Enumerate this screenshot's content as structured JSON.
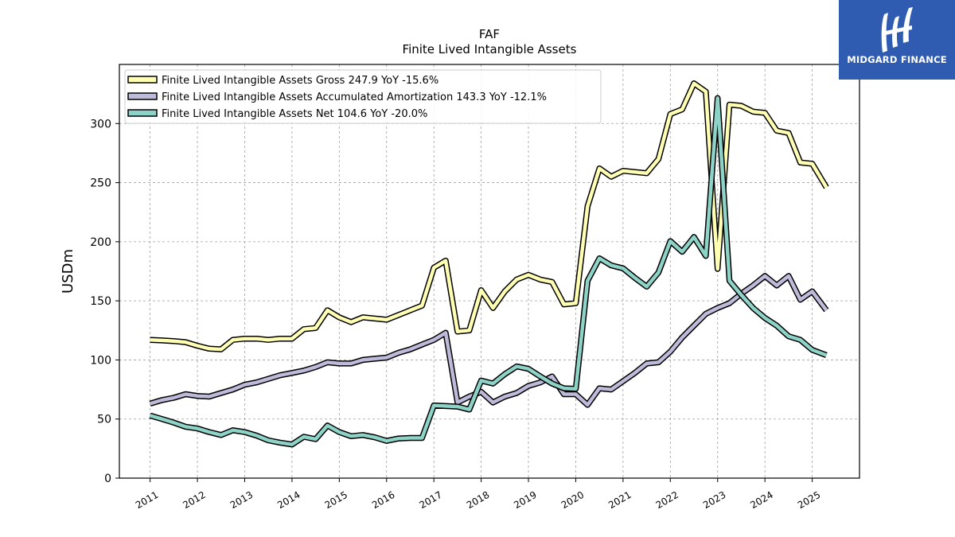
{
  "chart_data": {
    "type": "line",
    "title": "FAF",
    "subtitle": "Finite Lived Intangible Assets",
    "ylabel": "USDm",
    "xlabel": "",
    "ylim": [
      0,
      350
    ],
    "xlim": [
      2010.35,
      2026.0
    ],
    "yticks": [
      0,
      50,
      100,
      150,
      200,
      250,
      300
    ],
    "xticks": [
      2011,
      2012,
      2013,
      2014,
      2015,
      2016,
      2017,
      2018,
      2019,
      2020,
      2021,
      2022,
      2023,
      2024,
      2025
    ],
    "xtick_labels": [
      "2011",
      "2012",
      "2013",
      "2014",
      "2015",
      "2016",
      "2017",
      "2018",
      "2019",
      "2020",
      "2021",
      "2022",
      "2023",
      "2024",
      "2025"
    ],
    "grid": true,
    "legend_position": "top-left",
    "series": [
      {
        "name": "Finite Lived Intangible Assets Gross  247.9 YoY -15.6%",
        "color": "#ffffb3",
        "points": [
          [
            2011.0,
            117
          ],
          [
            2011.25,
            116.5
          ],
          [
            2011.5,
            116
          ],
          [
            2011.75,
            115
          ],
          [
            2012.0,
            112
          ],
          [
            2012.25,
            109.5
          ],
          [
            2012.5,
            109
          ],
          [
            2012.75,
            117
          ],
          [
            2013.0,
            118
          ],
          [
            2013.25,
            118
          ],
          [
            2013.5,
            117
          ],
          [
            2013.75,
            118
          ],
          [
            2014.0,
            118
          ],
          [
            2014.25,
            126
          ],
          [
            2014.5,
            127
          ],
          [
            2014.75,
            142
          ],
          [
            2015.0,
            136
          ],
          [
            2015.25,
            132
          ],
          [
            2015.5,
            136
          ],
          [
            2015.75,
            135
          ],
          [
            2016.0,
            134
          ],
          [
            2016.25,
            138
          ],
          [
            2016.5,
            142
          ],
          [
            2016.75,
            146
          ],
          [
            2017.0,
            178
          ],
          [
            2017.25,
            184
          ],
          [
            2017.5,
            124
          ],
          [
            2017.75,
            125
          ],
          [
            2018.0,
            159
          ],
          [
            2018.25,
            144
          ],
          [
            2018.5,
            158
          ],
          [
            2018.75,
            168
          ],
          [
            2019.0,
            172
          ],
          [
            2019.25,
            168
          ],
          [
            2019.5,
            166
          ],
          [
            2019.75,
            147
          ],
          [
            2020.0,
            148
          ],
          [
            2020.25,
            230
          ],
          [
            2020.5,
            262
          ],
          [
            2020.75,
            255
          ],
          [
            2021.0,
            260
          ],
          [
            2021.25,
            259
          ],
          [
            2021.5,
            258
          ],
          [
            2021.75,
            270
          ],
          [
            2022.0,
            308
          ],
          [
            2022.25,
            312
          ],
          [
            2022.5,
            334
          ],
          [
            2022.75,
            327
          ],
          [
            2023.0,
            177
          ],
          [
            2023.25,
            316
          ],
          [
            2023.5,
            315
          ],
          [
            2023.75,
            310
          ],
          [
            2024.0,
            309
          ],
          [
            2024.25,
            294
          ],
          [
            2024.5,
            292
          ],
          [
            2024.75,
            267
          ],
          [
            2025.0,
            266
          ],
          [
            2025.3,
            246
          ]
        ]
      },
      {
        "name": "Finite Lived Intangible Assets Accumulated Amortization  143.3 YoY -12.1%",
        "color": "#bebada",
        "points": [
          [
            2011.0,
            63
          ],
          [
            2011.25,
            66
          ],
          [
            2011.5,
            68
          ],
          [
            2011.75,
            71
          ],
          [
            2012.0,
            69.5
          ],
          [
            2012.25,
            69
          ],
          [
            2012.5,
            72
          ],
          [
            2012.75,
            75
          ],
          [
            2013.0,
            79
          ],
          [
            2013.25,
            81
          ],
          [
            2013.5,
            84
          ],
          [
            2013.75,
            87
          ],
          [
            2014.0,
            89
          ],
          [
            2014.25,
            91
          ],
          [
            2014.5,
            94
          ],
          [
            2014.75,
            98
          ],
          [
            2015.0,
            97
          ],
          [
            2015.25,
            97
          ],
          [
            2015.5,
            100
          ],
          [
            2015.75,
            101
          ],
          [
            2016.0,
            102
          ],
          [
            2016.25,
            106
          ],
          [
            2016.5,
            109
          ],
          [
            2016.75,
            113
          ],
          [
            2017.0,
            117
          ],
          [
            2017.25,
            123
          ],
          [
            2017.5,
            64
          ],
          [
            2017.75,
            69
          ],
          [
            2018.0,
            73
          ],
          [
            2018.25,
            64
          ],
          [
            2018.5,
            69
          ],
          [
            2018.75,
            72
          ],
          [
            2019.0,
            78
          ],
          [
            2019.25,
            81
          ],
          [
            2019.5,
            86
          ],
          [
            2019.75,
            71
          ],
          [
            2020.0,
            71
          ],
          [
            2020.25,
            62
          ],
          [
            2020.5,
            76
          ],
          [
            2020.75,
            75
          ],
          [
            2021.0,
            82
          ],
          [
            2021.25,
            89
          ],
          [
            2021.5,
            97
          ],
          [
            2021.75,
            98
          ],
          [
            2022.0,
            107
          ],
          [
            2022.25,
            119
          ],
          [
            2022.5,
            129
          ],
          [
            2022.75,
            139
          ],
          [
            2023.0,
            144
          ],
          [
            2023.25,
            148
          ],
          [
            2023.5,
            156
          ],
          [
            2023.75,
            163
          ],
          [
            2024.0,
            171
          ],
          [
            2024.25,
            163
          ],
          [
            2024.5,
            171
          ],
          [
            2024.75,
            151
          ],
          [
            2025.0,
            158
          ],
          [
            2025.3,
            142
          ]
        ]
      },
      {
        "name": "Finite Lived Intangible Assets Net  104.6 YoY -20.0%",
        "color": "#8dd3c7",
        "points": [
          [
            2011.0,
            53
          ],
          [
            2011.25,
            50
          ],
          [
            2011.5,
            47
          ],
          [
            2011.75,
            43.5
          ],
          [
            2012.0,
            42
          ],
          [
            2012.25,
            39
          ],
          [
            2012.5,
            36.5
          ],
          [
            2012.75,
            40.5
          ],
          [
            2013.0,
            39
          ],
          [
            2013.25,
            36
          ],
          [
            2013.5,
            32
          ],
          [
            2013.75,
            30
          ],
          [
            2014.0,
            28.5
          ],
          [
            2014.25,
            35
          ],
          [
            2014.5,
            33
          ],
          [
            2014.75,
            44.5
          ],
          [
            2015.0,
            39
          ],
          [
            2015.25,
            35.5
          ],
          [
            2015.5,
            36.5
          ],
          [
            2015.75,
            34.5
          ],
          [
            2016.0,
            31.5
          ],
          [
            2016.25,
            33.5
          ],
          [
            2016.5,
            34
          ],
          [
            2016.75,
            34
          ],
          [
            2017.0,
            61.5
          ],
          [
            2017.25,
            61
          ],
          [
            2017.5,
            60.5
          ],
          [
            2017.75,
            58
          ],
          [
            2018.0,
            82.5
          ],
          [
            2018.25,
            80
          ],
          [
            2018.5,
            88
          ],
          [
            2018.75,
            94.5
          ],
          [
            2019.0,
            92.5
          ],
          [
            2019.25,
            86
          ],
          [
            2019.5,
            80
          ],
          [
            2019.75,
            76
          ],
          [
            2020.0,
            75.5
          ],
          [
            2020.25,
            167
          ],
          [
            2020.5,
            186
          ],
          [
            2020.75,
            180
          ],
          [
            2021.0,
            177.5
          ],
          [
            2021.25,
            169.5
          ],
          [
            2021.5,
            162
          ],
          [
            2021.75,
            174
          ],
          [
            2022.0,
            200.5
          ],
          [
            2022.25,
            191.5
          ],
          [
            2022.5,
            204
          ],
          [
            2022.75,
            188
          ],
          [
            2023.0,
            321.5
          ],
          [
            2023.25,
            167
          ],
          [
            2023.5,
            155
          ],
          [
            2023.75,
            144
          ],
          [
            2024.0,
            135.5
          ],
          [
            2024.25,
            129
          ],
          [
            2024.5,
            120
          ],
          [
            2024.75,
            117
          ],
          [
            2025.0,
            108.5
          ],
          [
            2025.3,
            104
          ]
        ]
      }
    ]
  },
  "brand": {
    "name": "MIDGARD FINANCE",
    "background": "#2f5bb0"
  }
}
